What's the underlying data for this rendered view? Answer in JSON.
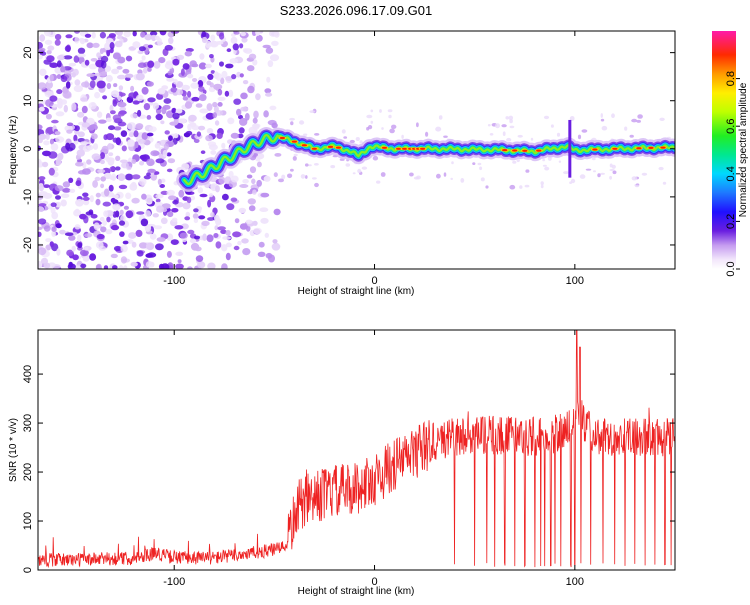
{
  "title": "S233.2026.096.17.09.G01",
  "colors": {
    "snr_line": "#ee2222",
    "frame": "#000000",
    "background": "#ffffff"
  },
  "chart_data": [
    {
      "type": "heatmap",
      "xlabel": "Height of straight line (km)",
      "ylabel": "Frequency (Hz)",
      "xlim": [
        -168,
        150
      ],
      "ylim": [
        -25,
        24.5
      ],
      "xticks": [
        "-100",
        "0",
        "100"
      ],
      "xtick_values": [
        -100,
        0,
        100
      ],
      "yticks": [
        "-20",
        "-10",
        "0",
        "10",
        "20"
      ],
      "ytick_values": [
        -20,
        -10,
        0,
        10,
        20
      ],
      "colorbar": {
        "label": "Normalized spectral amplitude",
        "range": [
          0,
          1
        ],
        "ticks": [
          "0.0",
          "0.2",
          "0.4",
          "0.6",
          "0.8"
        ],
        "tick_values": [
          0.0,
          0.2,
          0.4,
          0.6,
          0.8
        ],
        "colormap": "rainbow (white/violet low → red/magenta high)"
      },
      "noise_region_x": [
        -168,
        -48
      ],
      "carrier_frequency_track": [
        {
          "x": -95,
          "y": -7
        },
        {
          "x": -85,
          "y": -5
        },
        {
          "x": -75,
          "y": -2.5
        },
        {
          "x": -65,
          "y": 0
        },
        {
          "x": -55,
          "y": 2
        },
        {
          "x": -48,
          "y": 2.5
        },
        {
          "x": -40,
          "y": 1.5
        },
        {
          "x": -30,
          "y": 0
        },
        {
          "x": -20,
          "y": 0.5
        },
        {
          "x": -12,
          "y": -0.5
        },
        {
          "x": -8,
          "y": -1.5
        },
        {
          "x": -2,
          "y": 0.5
        },
        {
          "x": 10,
          "y": 0
        },
        {
          "x": 30,
          "y": 0
        },
        {
          "x": 60,
          "y": -0.2
        },
        {
          "x": 80,
          "y": -0.5
        },
        {
          "x": 96,
          "y": 0.5
        },
        {
          "x": 100,
          "y": -0.3
        },
        {
          "x": 120,
          "y": 0
        },
        {
          "x": 150,
          "y": 0.3
        }
      ]
    },
    {
      "type": "line",
      "xlabel": "Height of straight line (km)",
      "ylabel": "SNR (10 * v/v)",
      "xlim": [
        -168,
        150
      ],
      "ylim": [
        0,
        490
      ],
      "xticks": [
        "-100",
        "0",
        "100"
      ],
      "xtick_values": [
        -100,
        0,
        100
      ],
      "yticks": [
        "0",
        "100",
        "200",
        "300",
        "400"
      ],
      "ytick_values": [
        0,
        100,
        200,
        300,
        400
      ],
      "series": [
        {
          "values_envelope": [
            {
              "x": -168,
              "y": 20
            },
            {
              "x": -140,
              "y": 22
            },
            {
              "x": -120,
              "y": 24
            },
            {
              "x": -110,
              "y": 35
            },
            {
              "x": -100,
              "y": 25
            },
            {
              "x": -80,
              "y": 25
            },
            {
              "x": -60,
              "y": 35
            },
            {
              "x": -45,
              "y": 45
            },
            {
              "x": -38,
              "y": 130
            },
            {
              "x": -30,
              "y": 150
            },
            {
              "x": -20,
              "y": 160
            },
            {
              "x": -10,
              "y": 165
            },
            {
              "x": 0,
              "y": 185
            },
            {
              "x": 10,
              "y": 215
            },
            {
              "x": 20,
              "y": 240
            },
            {
              "x": 30,
              "y": 260
            },
            {
              "x": 40,
              "y": 272
            },
            {
              "x": 60,
              "y": 275
            },
            {
              "x": 80,
              "y": 272
            },
            {
              "x": 95,
              "y": 280
            },
            {
              "x": 101,
              "y": 320
            },
            {
              "x": 110,
              "y": 275
            },
            {
              "x": 130,
              "y": 270
            },
            {
              "x": 150,
              "y": 272
            }
          ],
          "peak": {
            "x": 101,
            "y": 490
          },
          "dropouts_x": [
            40,
            50,
            56,
            60,
            65,
            70,
            75,
            80,
            83,
            85,
            88,
            90,
            93,
            98,
            100,
            103,
            108,
            114,
            120,
            125,
            130,
            135,
            140,
            145,
            148
          ]
        }
      ]
    }
  ]
}
